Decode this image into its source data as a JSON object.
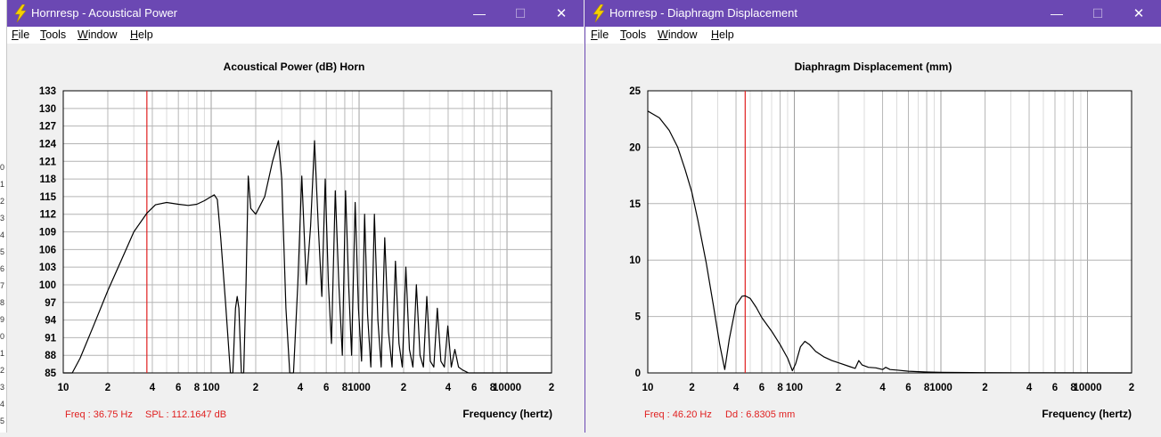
{
  "left_edge_labels": [
    "0",
    "1",
    "2",
    "3",
    "4",
    "5",
    "6",
    "7",
    "8",
    "9",
    "0",
    "1",
    "2",
    "3",
    "4",
    "5"
  ],
  "windows": [
    {
      "title": "Hornresp - Acoustical Power",
      "menu": [
        {
          "first": "F",
          "rest": "ile"
        },
        {
          "first": "T",
          "rest": "ools"
        },
        {
          "first": "W",
          "rest": "indow"
        },
        {
          "first": "H",
          "rest": "elp"
        }
      ],
      "buttons": {
        "minimize": "—",
        "maximize": "☐",
        "close": "✕"
      },
      "chart_title": "Acoustical Power (dB)   Horn",
      "xlabel": "Frequency (hertz)",
      "readout_freq": "Freq : 36.75 Hz",
      "readout_value": "SPL : 112.1647 dB",
      "accent_color": "#6b48b3",
      "cursor_color": "#e02020"
    },
    {
      "title": "Hornresp - Diaphragm Displacement",
      "menu": [
        {
          "first": "F",
          "rest": "ile"
        },
        {
          "first": "T",
          "rest": "ools"
        },
        {
          "first": "W",
          "rest": "indow"
        },
        {
          "first": "H",
          "rest": "elp"
        }
      ],
      "buttons": {
        "minimize": "—",
        "maximize": "☐",
        "close": "✕"
      },
      "chart_title": "Diaphragm Displacement (mm)",
      "xlabel": "Frequency (hertz)",
      "readout_freq": "Freq : 46.20 Hz",
      "readout_value": "Dd : 6.8305 mm",
      "accent_color": "#6b48b3",
      "cursor_color": "#e02020"
    }
  ],
  "chart_data": [
    {
      "type": "line",
      "title": "Acoustical Power (dB)   Horn",
      "xlabel": "Frequency (hertz)",
      "ylabel": "dB",
      "xscale": "log",
      "xlim": [
        10,
        20000
      ],
      "ylim": [
        85,
        133
      ],
      "yticks": [
        85,
        88,
        91,
        94,
        97,
        100,
        103,
        106,
        109,
        112,
        115,
        118,
        121,
        124,
        127,
        130,
        133
      ],
      "xtick_labels": [
        {
          "v": 10,
          "t": "10"
        },
        {
          "v": 20,
          "t": "2"
        },
        {
          "v": 40,
          "t": "4"
        },
        {
          "v": 60,
          "t": "6"
        },
        {
          "v": 80,
          "t": "8"
        },
        {
          "v": 100,
          "t": "100"
        },
        {
          "v": 200,
          "t": "2"
        },
        {
          "v": 400,
          "t": "4"
        },
        {
          "v": 600,
          "t": "6"
        },
        {
          "v": 800,
          "t": "8"
        },
        {
          "v": 1000,
          "t": "1000"
        },
        {
          "v": 2000,
          "t": "2"
        },
        {
          "v": 4000,
          "t": "4"
        },
        {
          "v": 6000,
          "t": "6"
        },
        {
          "v": 8000,
          "t": "8"
        },
        {
          "v": 10000,
          "t": "10000"
        },
        {
          "v": 20000,
          "t": "2"
        }
      ],
      "cursor_x": 36.75,
      "series": [
        {
          "name": "SPL",
          "points": [
            [
              10,
              85
            ],
            [
              11.5,
              85
            ],
            [
              13,
              87.5
            ],
            [
              16,
              93
            ],
            [
              20,
              99
            ],
            [
              25,
              104.5
            ],
            [
              30,
              109
            ],
            [
              36.75,
              112.16
            ],
            [
              42,
              113.6
            ],
            [
              50,
              114
            ],
            [
              60,
              113.7
            ],
            [
              70,
              113.5
            ],
            [
              80,
              113.7
            ],
            [
              90,
              114.3
            ],
            [
              100,
              115
            ],
            [
              105,
              115.3
            ],
            [
              110,
              114.5
            ],
            [
              116,
              108
            ],
            [
              125,
              97
            ],
            [
              135,
              85
            ],
            [
              140,
              85
            ],
            [
              146,
              96
            ],
            [
              150,
              98
            ],
            [
              154,
              96
            ],
            [
              160,
              85
            ],
            [
              166,
              85
            ],
            [
              172,
              100
            ],
            [
              178,
              118.5
            ],
            [
              185,
              113
            ],
            [
              200,
              112
            ],
            [
              230,
              115
            ],
            [
              260,
              121
            ],
            [
              285,
              124.5
            ],
            [
              300,
              118
            ],
            [
              320,
              96
            ],
            [
              340,
              85
            ],
            [
              360,
              85
            ],
            [
              385,
              100
            ],
            [
              410,
              118.5
            ],
            [
              440,
              100
            ],
            [
              470,
              110
            ],
            [
              500,
              124.5
            ],
            [
              530,
              110
            ],
            [
              560,
              98
            ],
            [
              590,
              118
            ],
            [
              620,
              100
            ],
            [
              650,
              90
            ],
            [
              690,
              116
            ],
            [
              730,
              100
            ],
            [
              770,
              88
            ],
            [
              810,
              116
            ],
            [
              850,
              100
            ],
            [
              890,
              88
            ],
            [
              940,
              114
            ],
            [
              990,
              96
            ],
            [
              1040,
              87
            ],
            [
              1090,
              112
            ],
            [
              1140,
              95
            ],
            [
              1200,
              86
            ],
            [
              1270,
              112
            ],
            [
              1340,
              94
            ],
            [
              1410,
              86
            ],
            [
              1490,
              108
            ],
            [
              1580,
              92
            ],
            [
              1670,
              86
            ],
            [
              1760,
              104
            ],
            [
              1860,
              90
            ],
            [
              1960,
              86
            ],
            [
              2070,
              103
            ],
            [
              2190,
              89
            ],
            [
              2310,
              86
            ],
            [
              2440,
              100
            ],
            [
              2580,
              88
            ],
            [
              2720,
              86
            ],
            [
              2870,
              98
            ],
            [
              3030,
              87
            ],
            [
              3200,
              86
            ],
            [
              3380,
              96
            ],
            [
              3570,
              87
            ],
            [
              3770,
              86
            ],
            [
              3980,
              93
            ],
            [
              4200,
              86
            ],
            [
              4440,
              89
            ],
            [
              4700,
              86
            ],
            [
              5000,
              85.5
            ],
            [
              5500,
              85
            ],
            [
              8000,
              85
            ],
            [
              20000,
              85
            ]
          ]
        }
      ]
    },
    {
      "type": "line",
      "title": "Diaphragm Displacement (mm)",
      "xlabel": "Frequency (hertz)",
      "ylabel": "mm",
      "xscale": "log",
      "xlim": [
        10,
        20000
      ],
      "ylim": [
        0,
        25
      ],
      "yticks": [
        0,
        5,
        10,
        15,
        20,
        25
      ],
      "xtick_labels": [
        {
          "v": 10,
          "t": "10"
        },
        {
          "v": 20,
          "t": "2"
        },
        {
          "v": 40,
          "t": "4"
        },
        {
          "v": 60,
          "t": "6"
        },
        {
          "v": 80,
          "t": "8"
        },
        {
          "v": 100,
          "t": "100"
        },
        {
          "v": 200,
          "t": "2"
        },
        {
          "v": 400,
          "t": "4"
        },
        {
          "v": 600,
          "t": "6"
        },
        {
          "v": 800,
          "t": "8"
        },
        {
          "v": 1000,
          "t": "1000"
        },
        {
          "v": 2000,
          "t": "2"
        },
        {
          "v": 4000,
          "t": "4"
        },
        {
          "v": 6000,
          "t": "6"
        },
        {
          "v": 8000,
          "t": "8"
        },
        {
          "v": 10000,
          "t": "10000"
        },
        {
          "v": 20000,
          "t": "2"
        }
      ],
      "cursor_x": 46.2,
      "series": [
        {
          "name": "Dd",
          "points": [
            [
              10,
              23.2
            ],
            [
              12,
              22.6
            ],
            [
              14,
              21.5
            ],
            [
              16,
              20
            ],
            [
              18,
              18
            ],
            [
              20,
              16
            ],
            [
              22,
              13.5
            ],
            [
              25,
              9.8
            ],
            [
              28,
              6
            ],
            [
              31,
              2.5
            ],
            [
              33.5,
              0.3
            ],
            [
              36,
              3
            ],
            [
              40,
              6
            ],
            [
              44,
              6.8
            ],
            [
              46.2,
              6.83
            ],
            [
              50,
              6.6
            ],
            [
              55,
              5.8
            ],
            [
              60,
              4.9
            ],
            [
              70,
              3.7
            ],
            [
              80,
              2.5
            ],
            [
              90,
              1.3
            ],
            [
              97,
              0.2
            ],
            [
              102,
              0.8
            ],
            [
              110,
              2.3
            ],
            [
              118,
              2.8
            ],
            [
              127,
              2.5
            ],
            [
              140,
              1.9
            ],
            [
              160,
              1.4
            ],
            [
              180,
              1.1
            ],
            [
              200,
              0.9
            ],
            [
              240,
              0.55
            ],
            [
              260,
              0.4
            ],
            [
              275,
              1.1
            ],
            [
              290,
              0.7
            ],
            [
              320,
              0.5
            ],
            [
              360,
              0.45
            ],
            [
              400,
              0.3
            ],
            [
              420,
              0.5
            ],
            [
              450,
              0.3
            ],
            [
              500,
              0.25
            ],
            [
              600,
              0.15
            ],
            [
              800,
              0.08
            ],
            [
              1000,
              0.05
            ],
            [
              2000,
              0.02
            ],
            [
              5000,
              0.01
            ],
            [
              20000,
              0
            ]
          ]
        }
      ]
    }
  ]
}
